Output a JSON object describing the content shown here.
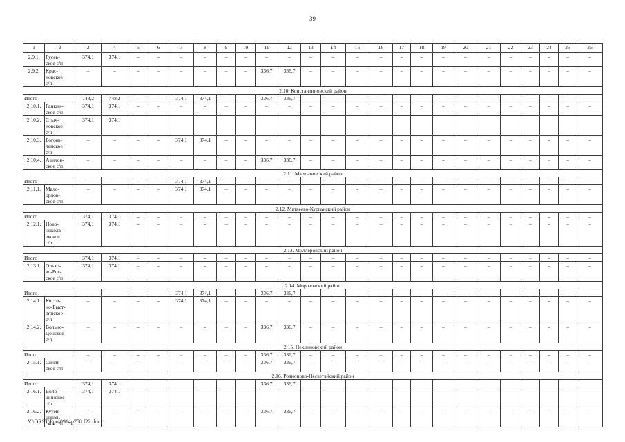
{
  "page": {
    "number": "39",
    "footer_path": "Y:\\ORST\\Ppo\\0914p758.f22.docx"
  },
  "table": {
    "column_numbers": [
      "1",
      "2",
      "3",
      "4",
      "5",
      "6",
      "7",
      "8",
      "9",
      "10",
      "11",
      "12",
      "13",
      "14",
      "15",
      "16",
      "17",
      "18",
      "19",
      "20",
      "21",
      "22",
      "23",
      "24",
      "25",
      "26"
    ],
    "itogo_label": "Итого",
    "rows": [
      {
        "type": "data",
        "num": "2.9.1.",
        "name": "Гусев-\nское с/п",
        "cells": [
          "374,1",
          "374,1",
          "–",
          "–",
          "–",
          "–",
          "–",
          "–",
          "–",
          "–",
          "–",
          "–",
          "–",
          "–",
          "–",
          "–",
          "–",
          "–",
          "–",
          "–",
          "–",
          "–",
          "–",
          "–"
        ]
      },
      {
        "type": "data",
        "num": "2.9.2.",
        "name": "Крас-\nновское\nс/п",
        "cells": [
          "–",
          "–",
          "–",
          "–",
          "–",
          "–",
          "–",
          "–",
          "336,7",
          "336,7",
          "–",
          "–",
          "–",
          "–",
          "–",
          "–",
          "–",
          "–",
          "–",
          "–",
          "–",
          "–",
          "–",
          "–"
        ]
      },
      {
        "type": "section",
        "label": "2.10. Константиновский район"
      },
      {
        "type": "itogo",
        "cells": [
          "748,2",
          "748,2",
          "–",
          "–",
          "374,1",
          "374,1",
          "–",
          "–",
          "336,7",
          "336,7",
          "–",
          "–",
          "–",
          "–",
          "–",
          "–",
          "–",
          "–",
          "–",
          "–",
          "–",
          "–",
          "–",
          "–"
        ]
      },
      {
        "type": "data",
        "num": "2.10.1.",
        "name": "Гапкин-\nское с/п",
        "cells": [
          "374,1",
          "374,1",
          "–",
          "–",
          "–",
          "–",
          "–",
          "–",
          "–",
          "–",
          "–",
          "–",
          "–",
          "–",
          "–",
          "–",
          "–",
          "–",
          "–",
          "–",
          "–",
          "–",
          "–",
          "–"
        ]
      },
      {
        "type": "data",
        "num": "2.10.2.",
        "name": "Стыч-\nновское\nс/п",
        "cells": [
          "374,1",
          "374,1",
          "",
          "",
          "",
          "",
          "",
          "",
          "",
          "",
          "",
          "",
          "",
          "",
          "",
          "",
          "",
          "",
          "",
          "",
          "",
          "",
          "",
          ""
        ]
      },
      {
        "type": "data",
        "num": "2.10.3.",
        "name": "Богояв-\nленское\nс/п",
        "cells": [
          "–",
          "–",
          "–",
          "–",
          "374,1",
          "374,1",
          "–",
          "–",
          "–",
          "–",
          "–",
          "–",
          "–",
          "–",
          "–",
          "–",
          "–",
          "–",
          "–",
          "–",
          "–",
          "–",
          "–",
          "–"
        ]
      },
      {
        "type": "data",
        "num": "2.10.4.",
        "name": "Авилов-\nское с/п",
        "cells": [
          "–",
          "–",
          "–",
          "–",
          "–",
          "–",
          "–",
          "–",
          "336,7",
          "336,7",
          "–",
          "–",
          "–",
          "–",
          "–",
          "–",
          "–",
          "–",
          "–",
          "–",
          "–",
          "–",
          "–",
          "–"
        ]
      },
      {
        "type": "section",
        "label": "2.11. Мартыновский район"
      },
      {
        "type": "itogo",
        "cells": [
          "–",
          "–",
          "–",
          "–",
          "374,1",
          "374,1",
          "–",
          "–",
          "–",
          "–",
          "–",
          "–",
          "–",
          "–",
          "–",
          "–",
          "–",
          "–",
          "–",
          "–",
          "–",
          "–",
          "–",
          "–"
        ]
      },
      {
        "type": "data",
        "num": "2.11.1.",
        "name": "Мало-\nорлов-\nское с/п",
        "cells": [
          "–",
          "–",
          "–",
          "–",
          "374,1",
          "374,1",
          "–",
          "–",
          "–",
          "–",
          "–",
          "–",
          "–",
          "–",
          "–",
          "–",
          "–",
          "–",
          "–",
          "–",
          "–",
          "–",
          "–",
          "–"
        ]
      },
      {
        "type": "section",
        "label": "2.12. Матвеево-Курганский район"
      },
      {
        "type": "itogo",
        "cells": [
          "374,1",
          "374,1",
          "–",
          "–",
          "–",
          "–",
          "–",
          "–",
          "–",
          "–",
          "–",
          "–",
          "–",
          "–",
          "–",
          "–",
          "–",
          "–",
          "–",
          "–",
          "–",
          "–",
          "–",
          "–"
        ]
      },
      {
        "type": "data",
        "num": "2.12.1.",
        "name": "Ново-\nникола-\nевское\nс/п",
        "cells": [
          "374,1",
          "374,1",
          "–",
          "–",
          "–",
          "–",
          "–",
          "–",
          "–",
          "–",
          "–",
          "–",
          "–",
          "–",
          "–",
          "–",
          "–",
          "–",
          "–",
          "–",
          "–",
          "–",
          "–",
          "–"
        ]
      },
      {
        "type": "section",
        "label": "2.13. Миллеровский район"
      },
      {
        "type": "itogo",
        "cells": [
          "374,1",
          "374,1",
          "–",
          "–",
          "–",
          "–",
          "–",
          "–",
          "–",
          "–",
          "–",
          "–",
          "–",
          "–",
          "–",
          "–",
          "–",
          "–",
          "–",
          "–",
          "–",
          "–",
          "–",
          "–"
        ]
      },
      {
        "type": "data",
        "num": "2.13.1.",
        "name": "Ольхо-\nво-Рог-\nское с/п",
        "cells": [
          "374,1",
          "374,1",
          "–",
          "–",
          "–",
          "–",
          "–",
          "–",
          "–",
          "–",
          "–",
          "–",
          "–",
          "–",
          "–",
          "–",
          "–",
          "–",
          "–",
          "–",
          "–",
          "–",
          "–",
          "–"
        ]
      },
      {
        "type": "section",
        "label": "2.14. Морозовский район"
      },
      {
        "type": "itogo",
        "cells": [
          "–",
          "–",
          "–",
          "–",
          "374,1",
          "374,1",
          "–",
          "–",
          "336,7",
          "336,7",
          "–",
          "–",
          "–",
          "–",
          "–",
          "–",
          "–",
          "–",
          "–",
          "–",
          "–",
          "–",
          "–",
          "–"
        ]
      },
      {
        "type": "data",
        "num": "2.14.1.",
        "name": "Кости-\nно-Быст-\nрянское\nс/п",
        "cells": [
          "–",
          "–",
          "–",
          "–",
          "374,1",
          "374,1",
          "–",
          "–",
          "–",
          "–",
          "–",
          "–",
          "–",
          "–",
          "–",
          "–",
          "–",
          "–",
          "–",
          "–",
          "–",
          "–",
          "–",
          "–"
        ]
      },
      {
        "type": "data",
        "num": "2.14.2.",
        "name": "Вольно-\nДонское\nс/п",
        "cells": [
          "–",
          "–",
          "–",
          "–",
          "–",
          "–",
          "–",
          "–",
          "336,7",
          "336,7",
          "–",
          "–",
          "–",
          "–",
          "–",
          "–",
          "–",
          "–",
          "–",
          "–",
          "–",
          "–",
          "–",
          "–"
        ]
      },
      {
        "type": "section",
        "label": "2.15. Неклиновский район"
      },
      {
        "type": "itogo",
        "cells": [
          "–",
          "–",
          "–",
          "–",
          "–",
          "–",
          "–",
          "–",
          "336,7",
          "336,7",
          "–",
          "–",
          "–",
          "–",
          "–",
          "–",
          "–",
          "–",
          "–",
          "–",
          "–",
          "–",
          "–",
          "–"
        ]
      },
      {
        "type": "data",
        "num": "2.15.1.",
        "name": "Синяв-\nское с/п",
        "cells": [
          "–",
          "–",
          "–",
          "–",
          "–",
          "–",
          "–",
          "–",
          "336,7",
          "336,7",
          "–",
          "–",
          "–",
          "–",
          "–",
          "–",
          "–",
          "–",
          "–",
          "–",
          "–",
          "–",
          "–",
          "–"
        ]
      },
      {
        "type": "section",
        "label": "2.16. Родионово-Несветайский район"
      },
      {
        "type": "itogo",
        "cells": [
          "374,1",
          "374,1",
          "",
          "",
          "",
          "",
          "",
          "",
          "336,7",
          "336,7",
          "",
          "",
          "",
          "",
          "",
          "",
          "",
          "",
          "",
          "",
          "",
          "",
          "",
          ""
        ]
      },
      {
        "type": "data",
        "num": "2.16.1.",
        "name": "Воло-\nшинское\nс/п",
        "cells": [
          "374,1",
          "374,1",
          "",
          "",
          "",
          "",
          "",
          "",
          "",
          "",
          "",
          "",
          "",
          "",
          "",
          "",
          "",
          "",
          "",
          "",
          "",
          "",
          "",
          ""
        ]
      },
      {
        "type": "data",
        "num": "2.16.2.",
        "name": "Кутей-\nников-\nское с/п",
        "cells": [
          "–",
          "–",
          "–",
          "–",
          "–",
          "–",
          "–",
          "–",
          "336,7",
          "336,7",
          "–",
          "–",
          "–",
          "–",
          "–",
          "–",
          "–",
          "–",
          "–",
          "–",
          "–",
          "–",
          "–",
          "–"
        ]
      }
    ]
  }
}
